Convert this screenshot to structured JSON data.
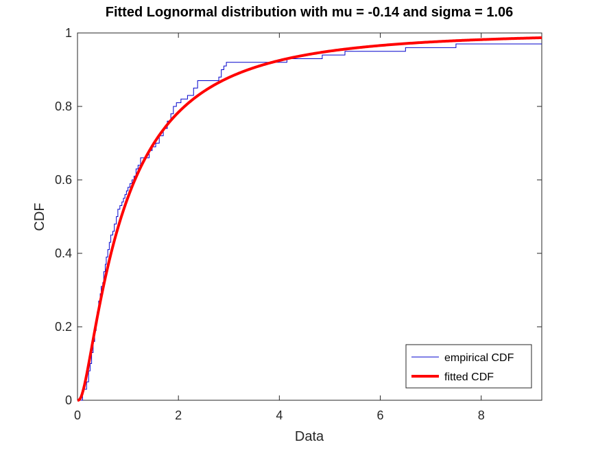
{
  "chart_data": {
    "type": "line",
    "title": "Fitted Lognormal distribution with mu = -0.14 and sigma = 1.06",
    "xlabel": "Data",
    "ylabel": "CDF",
    "xlim": [
      0,
      9.2
    ],
    "ylim": [
      0,
      1
    ],
    "xticks": [
      0,
      2,
      4,
      6,
      8
    ],
    "xtick_labels": [
      "0",
      "2",
      "4",
      "6",
      "8"
    ],
    "yticks": [
      0,
      0.2,
      0.4,
      0.6,
      0.8,
      1
    ],
    "ytick_labels": [
      "0",
      "0.2",
      "0.4",
      "0.6",
      "0.8",
      "1"
    ],
    "grid": false,
    "legend_position": "bottom-right",
    "colors": {
      "empirical": "#0000cc",
      "fitted": "#ff0000"
    },
    "fitted_params": {
      "mu": -0.14,
      "sigma": 1.06
    },
    "series": [
      {
        "name": "empirical CDF",
        "kind": "stairs",
        "x": [
          0.1,
          0.18,
          0.22,
          0.25,
          0.28,
          0.31,
          0.34,
          0.37,
          0.39,
          0.42,
          0.45,
          0.47,
          0.5,
          0.52,
          0.55,
          0.57,
          0.6,
          0.63,
          0.66,
          0.7,
          0.73,
          0.77,
          0.8,
          0.84,
          0.88,
          0.91,
          0.94,
          0.97,
          1.0,
          1.04,
          1.08,
          1.12,
          1.16,
          1.2,
          1.25,
          1.3,
          1.36,
          1.42,
          1.48,
          1.55,
          1.62,
          1.7,
          1.78,
          1.85,
          1.9,
          1.96,
          2.05,
          2.18,
          2.3,
          2.38,
          2.8,
          2.85,
          2.9,
          2.95,
          4.15,
          4.85,
          5.3,
          6.5,
          7.5
        ],
        "y": [
          0.03,
          0.05,
          0.08,
          0.1,
          0.13,
          0.16,
          0.19,
          0.21,
          0.24,
          0.27,
          0.29,
          0.31,
          0.32,
          0.35,
          0.37,
          0.39,
          0.41,
          0.43,
          0.45,
          0.46,
          0.48,
          0.5,
          0.52,
          0.53,
          0.54,
          0.55,
          0.56,
          0.57,
          0.58,
          0.59,
          0.6,
          0.61,
          0.63,
          0.64,
          0.66,
          0.66,
          0.66,
          0.68,
          0.69,
          0.7,
          0.72,
          0.74,
          0.76,
          0.78,
          0.8,
          0.81,
          0.82,
          0.83,
          0.85,
          0.87,
          0.88,
          0.9,
          0.91,
          0.92,
          0.93,
          0.94,
          0.95,
          0.96,
          0.97
        ]
      },
      {
        "name": "fitted CDF",
        "kind": "line"
      }
    ]
  }
}
